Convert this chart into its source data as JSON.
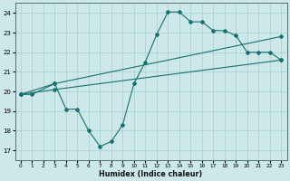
{
  "xlabel": "Humidex (Indice chaleur)",
  "bg_color": "#cce8e8",
  "grid_color": "#aacece",
  "line_color": "#1a7070",
  "xlim": [
    -0.5,
    23.5
  ],
  "ylim": [
    16.5,
    24.5
  ],
  "xticks": [
    0,
    1,
    2,
    3,
    4,
    5,
    6,
    7,
    8,
    9,
    10,
    11,
    12,
    13,
    14,
    15,
    16,
    17,
    18,
    19,
    20,
    21,
    22,
    23
  ],
  "yticks": [
    17,
    18,
    19,
    20,
    21,
    22,
    23,
    24
  ],
  "line1_x": [
    0,
    1,
    3,
    4,
    5,
    6,
    7,
    8,
    9,
    10,
    11,
    12,
    13,
    14,
    15,
    16,
    17,
    18,
    19,
    20,
    21,
    22,
    23
  ],
  "line1_y": [
    19.85,
    19.85,
    20.4,
    19.1,
    19.1,
    18.0,
    17.2,
    17.45,
    18.3,
    20.4,
    21.5,
    22.9,
    24.05,
    24.05,
    23.55,
    23.55,
    23.1,
    23.1,
    22.85,
    22.0,
    22.0,
    22.0,
    21.6
  ],
  "line2_x": [
    0,
    3,
    23
  ],
  "line2_y": [
    19.85,
    20.4,
    22.8
  ],
  "line3_x": [
    0,
    3,
    23
  ],
  "line3_y": [
    19.85,
    20.1,
    21.6
  ]
}
